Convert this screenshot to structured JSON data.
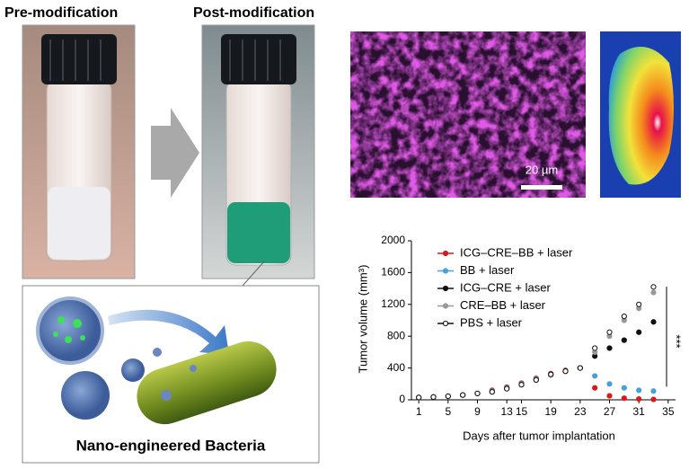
{
  "labels": {
    "pre": "Pre-modification",
    "post": "Post-modification",
    "bacteria": "Nano-engineered Bacteria",
    "scale_bar": "20 µm"
  },
  "chart_data": {
    "type": "line",
    "ylabel": "Tumor volume (mm³)",
    "xlabel": "Days after tumor implantation",
    "x": [
      1,
      3,
      5,
      7,
      9,
      11,
      13,
      15,
      17,
      19,
      21,
      23,
      25,
      27,
      29,
      31,
      33
    ],
    "series": [
      {
        "name": "ICG–CRE–BB + laser",
        "color": "#d7191c",
        "values": [
          30,
          35,
          45,
          60,
          80,
          120,
          160,
          210,
          270,
          330,
          370,
          400,
          150,
          50,
          20,
          10,
          5
        ]
      },
      {
        "name": "BB + laser",
        "color": "#4a9fd8",
        "values": [
          30,
          35,
          45,
          60,
          80,
          110,
          150,
          200,
          260,
          320,
          360,
          400,
          300,
          200,
          150,
          120,
          110
        ]
      },
      {
        "name": "ICG–CRE + laser",
        "color": "#111111",
        "values": [
          30,
          35,
          45,
          60,
          80,
          100,
          140,
          190,
          250,
          320,
          360,
          400,
          550,
          650,
          750,
          850,
          980
        ]
      },
      {
        "name": "CRE–BB + laser",
        "color": "#999999",
        "values": [
          30,
          35,
          45,
          60,
          80,
          100,
          140,
          190,
          250,
          310,
          360,
          400,
          600,
          800,
          1000,
          1150,
          1350
        ]
      },
      {
        "name": "PBS + laser",
        "color": "#ffffff",
        "values": [
          30,
          35,
          45,
          60,
          80,
          100,
          140,
          190,
          250,
          320,
          360,
          400,
          650,
          850,
          1050,
          1200,
          1420
        ]
      }
    ],
    "xlim": [
      0,
      36
    ],
    "xticks": [
      1,
      5,
      9,
      13,
      15,
      19,
      23,
      27,
      31,
      35
    ],
    "ylim": [
      0,
      2000
    ],
    "yticks": [
      0,
      400,
      800,
      1200,
      1600,
      2000
    ],
    "annotation": "***"
  }
}
